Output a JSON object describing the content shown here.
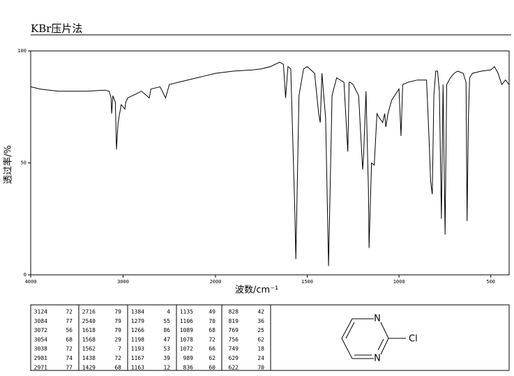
{
  "header": {
    "title": "KBr压片法"
  },
  "chart_data": {
    "type": "line",
    "x_label": "波数/cm⁻¹",
    "y_label": "透过率/%",
    "color": "#000000",
    "xlim": [
      4000,
      400
    ],
    "x_scale_break": 2000,
    "xticks": [
      4000,
      3000,
      2000,
      1500,
      1000,
      500
    ],
    "ylim": [
      0,
      100
    ],
    "yticks": [
      0,
      50,
      100
    ],
    "x": [
      4000,
      3900,
      3800,
      3700,
      3600,
      3400,
      3200,
      3150,
      3130,
      3124,
      3110,
      3084,
      3072,
      3054,
      3038,
      3020,
      2981,
      2971,
      2950,
      2900,
      2800,
      2716,
      2700,
      2600,
      2540,
      2500,
      2400,
      2200,
      2100,
      2000,
      1900,
      1800,
      1750,
      1700,
      1650,
      1630,
      1618,
      1605,
      1590,
      1568,
      1562,
      1545,
      1520,
      1500,
      1460,
      1438,
      1429,
      1420,
      1400,
      1384,
      1365,
      1340,
      1300,
      1279,
      1272,
      1266,
      1250,
      1220,
      1198,
      1193,
      1180,
      1167,
      1163,
      1150,
      1135,
      1120,
      1106,
      1089,
      1078,
      1072,
      1060,
      1040,
      1000,
      989,
      980,
      950,
      900,
      850,
      836,
      828,
      819,
      810,
      800,
      790,
      780,
      769,
      760,
      756,
      749,
      740,
      720,
      700,
      680,
      650,
      635,
      629,
      622,
      615,
      600,
      550,
      500,
      480,
      460,
      440,
      420,
      400
    ],
    "values": [
      84,
      83,
      82.5,
      82,
      82,
      82,
      82.5,
      82,
      79,
      72,
      80,
      77,
      56,
      68,
      72,
      76,
      74,
      77,
      79,
      80,
      82,
      79,
      83,
      84,
      79,
      85,
      86,
      88,
      89,
      90,
      91,
      91.5,
      92,
      93,
      95,
      94,
      79,
      93,
      92,
      29,
      7,
      80,
      92,
      93,
      90,
      72,
      68,
      90,
      70,
      4,
      80,
      88,
      86,
      55,
      86,
      86,
      85,
      80,
      47,
      53,
      82,
      39,
      12,
      50,
      49,
      72,
      70,
      68,
      72,
      66,
      72,
      78,
      83,
      62,
      85,
      86,
      87,
      87,
      60,
      42,
      36,
      80,
      91,
      91,
      82,
      25,
      85,
      62,
      18,
      85,
      88,
      90,
      91,
      90,
      86,
      24,
      70,
      88,
      90,
      91,
      91.5,
      93,
      90,
      85,
      87,
      85
    ]
  },
  "peak_table": {
    "rows": [
      [
        3124,
        72,
        2716,
        79,
        1384,
        4,
        1135,
        49,
        828,
        42
      ],
      [
        3084,
        77,
        2540,
        79,
        1279,
        55,
        1106,
        70,
        819,
        36
      ],
      [
        3072,
        56,
        1618,
        79,
        1266,
        86,
        1089,
        68,
        769,
        25
      ],
      [
        3054,
        68,
        1568,
        29,
        1198,
        47,
        1078,
        72,
        756,
        62
      ],
      [
        3038,
        72,
        1562,
        7,
        1193,
        53,
        1072,
        66,
        749,
        18
      ],
      [
        2981,
        74,
        1438,
        72,
        1167,
        39,
        989,
        62,
        629,
        24
      ],
      [
        2971,
        77,
        1429,
        68,
        1163,
        12,
        836,
        60,
        622,
        70
      ]
    ]
  },
  "structure": {
    "atoms": [
      "N",
      "N",
      "Cl"
    ]
  }
}
